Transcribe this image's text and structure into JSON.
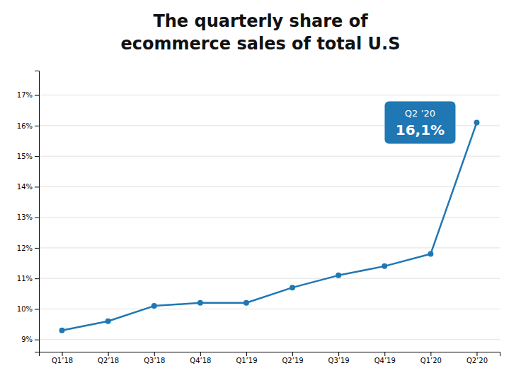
{
  "chart_data": {
    "type": "line",
    "title": "The quarterly share of",
    "subtitle": "ecommerce sales of total U.S",
    "categories": [
      "Q1’18",
      "Q2’18",
      "Q3’18",
      "Q4’18",
      "Q1’19",
      "Q2’19",
      "Q3’19",
      "Q4’19",
      "Q1’20",
      "Q2’20"
    ],
    "values": [
      9.3,
      9.6,
      10.1,
      10.2,
      10.2,
      10.7,
      11.1,
      11.4,
      11.8,
      16.1
    ],
    "ylim": [
      8.6,
      17.8
    ],
    "yticks": [
      {
        "value": 9,
        "label": "9%"
      },
      {
        "value": 10,
        "label": "10%"
      },
      {
        "value": 11,
        "label": "11%"
      },
      {
        "value": 12,
        "label": "12%"
      },
      {
        "value": 13,
        "label": "13%"
      },
      {
        "value": 14,
        "label": "14%"
      },
      {
        "value": 15,
        "label": "15%"
      },
      {
        "value": 16,
        "label": "16%"
      },
      {
        "value": 17,
        "label": "17%"
      }
    ],
    "grid": true,
    "marker": "circle",
    "annotations": [
      "Q2 ’20",
      "16,1%"
    ]
  }
}
